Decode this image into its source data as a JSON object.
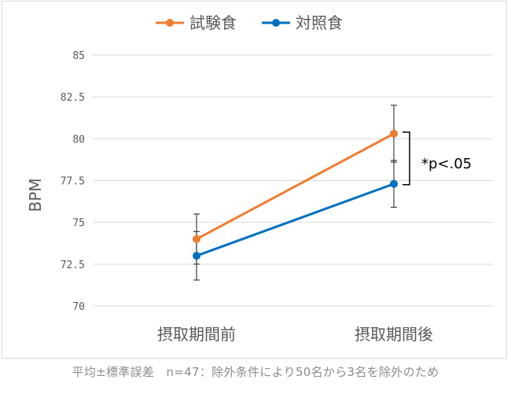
{
  "chart_data": {
    "type": "line",
    "categories": [
      "摂取期間前",
      "摂取期間後"
    ],
    "series": [
      {
        "name": "試験食",
        "color": "#ed7d31",
        "values": [
          74.0,
          80.3
        ],
        "error": [
          1.5,
          1.7
        ]
      },
      {
        "name": "対照食",
        "color": "#0070c0",
        "values": [
          73.0,
          77.3
        ],
        "error": [
          1.45,
          1.4
        ]
      }
    ],
    "ylabel": "BPM",
    "ylim": [
      70,
      85
    ],
    "yticks": [
      "70",
      "72.5",
      "75",
      "77.5",
      "80",
      "82.5",
      "85"
    ],
    "grid": true,
    "legend_position": "top",
    "annotation": "*p<.05"
  },
  "caption": "平均±標準誤差　n=47：除外条件により50名から3名を除外のため"
}
